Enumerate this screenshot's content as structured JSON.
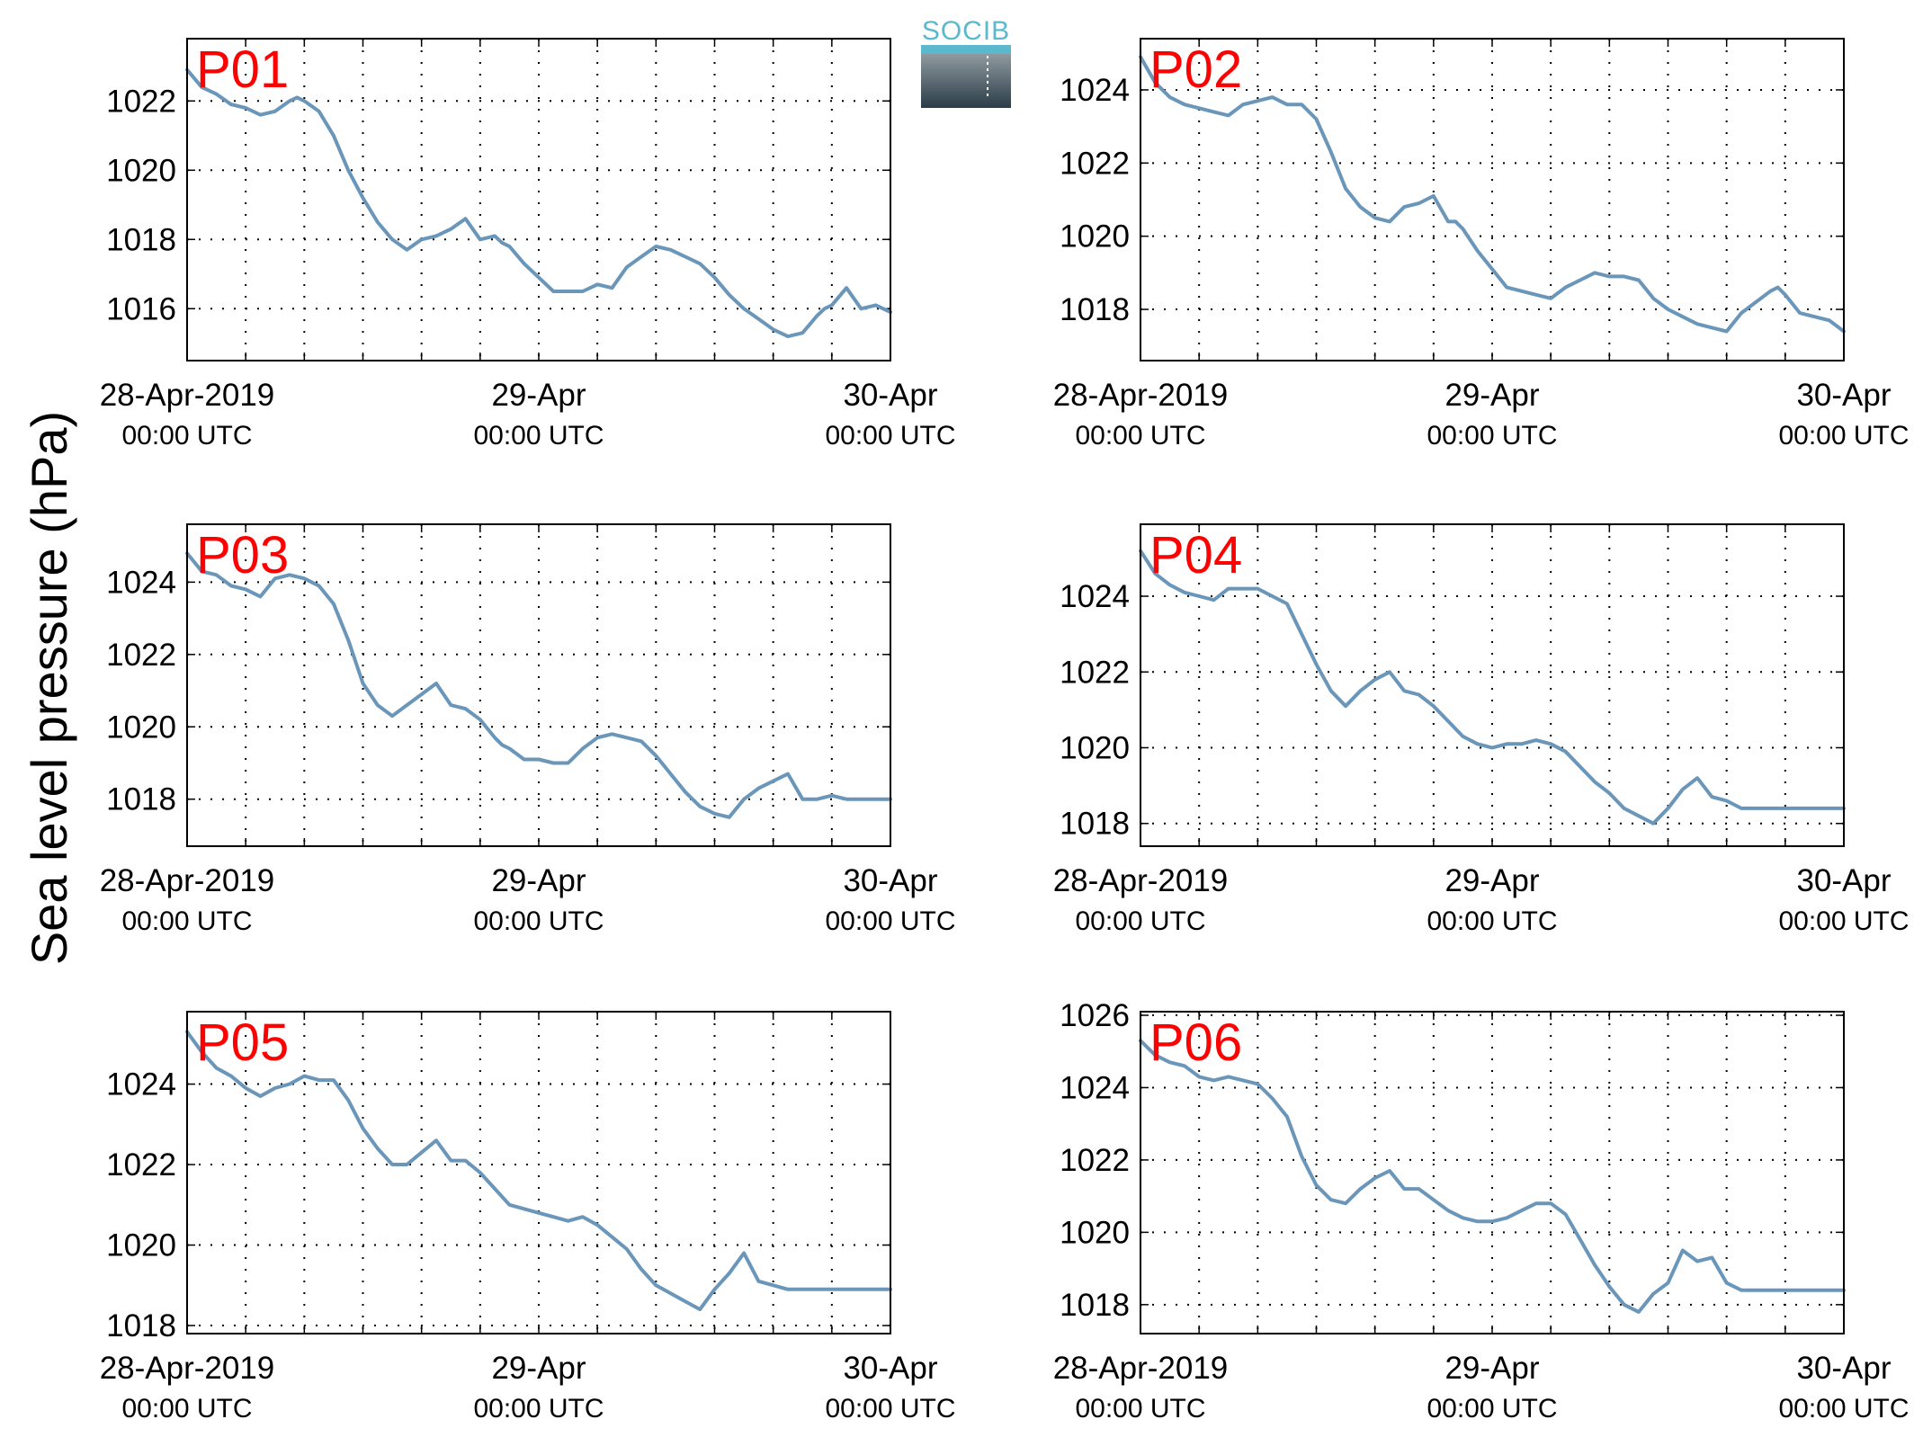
{
  "figure": {
    "ylabel": "Sea level pressure (hPa)",
    "logo_text": "SOCIB",
    "colors": {
      "line": "#6a96ba",
      "title": "#ff0000",
      "axis": "#000000",
      "grid": "#000000"
    }
  },
  "chart_data": [
    {
      "type": "line",
      "title": "P01",
      "xlim": [
        0,
        48
      ],
      "ylim": [
        1014.5,
        1023.8
      ],
      "yticks": [
        1016,
        1018,
        1020,
        1022
      ],
      "xticks": [
        0,
        4,
        8,
        12,
        16,
        20,
        24,
        28,
        32,
        36,
        40,
        44,
        48
      ],
      "xlabels": [
        {
          "x": 0,
          "line1": "28-Apr-2019",
          "line2": "00:00 UTC"
        },
        {
          "x": 24,
          "line1": "29-Apr",
          "line2": "00:00 UTC"
        },
        {
          "x": 48,
          "line1": "30-Apr",
          "line2": "00:00 UTC"
        }
      ],
      "series": [
        {
          "x": [
            0,
            1,
            2,
            3,
            4,
            5,
            6,
            7,
            7.5,
            8,
            9,
            10,
            11,
            12,
            13,
            14,
            15,
            16,
            17,
            18,
            19,
            20,
            21,
            21.5,
            22,
            23,
            24,
            25,
            26,
            27,
            28,
            29,
            30,
            31,
            32,
            33,
            34,
            35,
            36,
            37,
            38,
            39,
            40,
            41,
            42,
            43,
            43.5,
            44,
            45,
            46,
            47,
            48
          ],
          "y": [
            1022.9,
            1022.4,
            1022.2,
            1021.9,
            1021.8,
            1021.6,
            1021.7,
            1022.0,
            1022.1,
            1022.0,
            1021.7,
            1021.0,
            1020.0,
            1019.2,
            1018.5,
            1018.0,
            1017.7,
            1018.0,
            1018.1,
            1018.3,
            1018.6,
            1018.0,
            1018.1,
            1017.9,
            1017.8,
            1017.3,
            1016.9,
            1016.5,
            1016.5,
            1016.5,
            1016.7,
            1016.6,
            1017.2,
            1017.5,
            1017.8,
            1017.7,
            1017.5,
            1017.3,
            1016.9,
            1016.4,
            1016.0,
            1015.7,
            1015.4,
            1015.2,
            1015.3,
            1015.8,
            1016.0,
            1016.1,
            1016.6,
            1016.0,
            1016.1,
            1015.9
          ]
        }
      ]
    },
    {
      "type": "line",
      "title": "P02",
      "xlim": [
        0,
        48
      ],
      "ylim": [
        1016.6,
        1025.4
      ],
      "yticks": [
        1018,
        1020,
        1022,
        1024
      ],
      "xticks": [
        0,
        4,
        8,
        12,
        16,
        20,
        24,
        28,
        32,
        36,
        40,
        44,
        48
      ],
      "xlabels": [
        {
          "x": 0,
          "line1": "28-Apr-2019",
          "line2": "00:00 UTC"
        },
        {
          "x": 24,
          "line1": "29-Apr",
          "line2": "00:00 UTC"
        },
        {
          "x": 48,
          "line1": "30-Apr",
          "line2": "00:00 UTC"
        }
      ],
      "series": [
        {
          "x": [
            0,
            1,
            2,
            3,
            4,
            5,
            6,
            7,
            8,
            9,
            10,
            11,
            12,
            13,
            14,
            15,
            16,
            17,
            18,
            19,
            20,
            21,
            21.5,
            22,
            23,
            24,
            25,
            26,
            27,
            28,
            29,
            30,
            31,
            32,
            33,
            34,
            35,
            36,
            37,
            38,
            39,
            40,
            41,
            42,
            43,
            43.5,
            44,
            45,
            46,
            47,
            48
          ],
          "y": [
            1024.9,
            1024.2,
            1023.8,
            1023.6,
            1023.5,
            1023.4,
            1023.3,
            1023.6,
            1023.7,
            1023.8,
            1023.6,
            1023.6,
            1023.2,
            1022.3,
            1021.3,
            1020.8,
            1020.5,
            1020.4,
            1020.8,
            1020.9,
            1021.1,
            1020.4,
            1020.4,
            1020.2,
            1019.6,
            1019.1,
            1018.6,
            1018.5,
            1018.4,
            1018.3,
            1018.6,
            1018.8,
            1019.0,
            1018.9,
            1018.9,
            1018.8,
            1018.3,
            1018.0,
            1017.8,
            1017.6,
            1017.5,
            1017.4,
            1017.9,
            1018.2,
            1018.5,
            1018.6,
            1018.4,
            1017.9,
            1017.8,
            1017.7,
            1017.4
          ]
        }
      ]
    },
    {
      "type": "line",
      "title": "P03",
      "xlim": [
        0,
        48
      ],
      "ylim": [
        1016.7,
        1025.6
      ],
      "yticks": [
        1018,
        1020,
        1022,
        1024
      ],
      "xticks": [
        0,
        4,
        8,
        12,
        16,
        20,
        24,
        28,
        32,
        36,
        40,
        44,
        48
      ],
      "xlabels": [
        {
          "x": 0,
          "line1": "28-Apr-2019",
          "line2": "00:00 UTC"
        },
        {
          "x": 24,
          "line1": "29-Apr",
          "line2": "00:00 UTC"
        },
        {
          "x": 48,
          "line1": "30-Apr",
          "line2": "00:00 UTC"
        }
      ],
      "series": [
        {
          "x": [
            0,
            1,
            2,
            3,
            4,
            5,
            6,
            7,
            8,
            9,
            10,
            11,
            12,
            13,
            14,
            15,
            16,
            17,
            18,
            19,
            20,
            21,
            21.5,
            22,
            23,
            24,
            25,
            26,
            27,
            28,
            29,
            30,
            31,
            32,
            33,
            34,
            35,
            36,
            37,
            38,
            39,
            40,
            41,
            42,
            43,
            44,
            45,
            46,
            47,
            48
          ],
          "y": [
            1024.8,
            1024.3,
            1024.2,
            1023.9,
            1023.8,
            1023.6,
            1024.1,
            1024.2,
            1024.1,
            1023.9,
            1023.4,
            1022.4,
            1021.2,
            1020.6,
            1020.3,
            1020.6,
            1020.9,
            1021.2,
            1020.6,
            1020.5,
            1020.2,
            1019.7,
            1019.5,
            1019.4,
            1019.1,
            1019.1,
            1019.0,
            1019.0,
            1019.4,
            1019.7,
            1019.8,
            1019.7,
            1019.6,
            1019.2,
            1018.7,
            1018.2,
            1017.8,
            1017.6,
            1017.5,
            1018.0,
            1018.3,
            1018.5,
            1018.7,
            1018.0,
            1018.0,
            1018.1,
            1018.0,
            1018.0,
            1018.0,
            1018.0
          ]
        }
      ]
    },
    {
      "type": "line",
      "title": "P04",
      "xlim": [
        0,
        48
      ],
      "ylim": [
        1017.4,
        1025.9
      ],
      "yticks": [
        1018,
        1020,
        1022,
        1024
      ],
      "xticks": [
        0,
        4,
        8,
        12,
        16,
        20,
        24,
        28,
        32,
        36,
        40,
        44,
        48
      ],
      "xlabels": [
        {
          "x": 0,
          "line1": "28-Apr-2019",
          "line2": "00:00 UTC"
        },
        {
          "x": 24,
          "line1": "29-Apr",
          "line2": "00:00 UTC"
        },
        {
          "x": 48,
          "line1": "30-Apr",
          "line2": "00:00 UTC"
        }
      ],
      "series": [
        {
          "x": [
            0,
            1,
            2,
            3,
            4,
            5,
            6,
            7,
            8,
            9,
            10,
            11,
            12,
            13,
            14,
            15,
            16,
            17,
            18,
            19,
            20,
            21,
            22,
            23,
            24,
            25,
            26,
            27,
            28,
            29,
            30,
            31,
            32,
            33,
            34,
            35,
            36,
            37,
            38,
            39,
            40,
            41,
            42,
            43,
            44,
            45,
            46,
            47,
            48
          ],
          "y": [
            1025.2,
            1024.6,
            1024.3,
            1024.1,
            1024.0,
            1023.9,
            1024.2,
            1024.2,
            1024.2,
            1024.0,
            1023.8,
            1023.0,
            1022.2,
            1021.5,
            1021.1,
            1021.5,
            1021.8,
            1022.0,
            1021.5,
            1021.4,
            1021.1,
            1020.7,
            1020.3,
            1020.1,
            1020.0,
            1020.1,
            1020.1,
            1020.2,
            1020.1,
            1019.9,
            1019.5,
            1019.1,
            1018.8,
            1018.4,
            1018.2,
            1018.0,
            1018.4,
            1018.9,
            1019.2,
            1018.7,
            1018.6,
            1018.4,
            1018.4,
            1018.4,
            1018.4,
            1018.4,
            1018.4,
            1018.4,
            1018.4
          ]
        }
      ]
    },
    {
      "type": "line",
      "title": "P05",
      "xlim": [
        0,
        48
      ],
      "ylim": [
        1017.8,
        1025.8
      ],
      "yticks": [
        1018,
        1020,
        1022,
        1024
      ],
      "xticks": [
        0,
        4,
        8,
        12,
        16,
        20,
        24,
        28,
        32,
        36,
        40,
        44,
        48
      ],
      "xlabels": [
        {
          "x": 0,
          "line1": "28-Apr-2019",
          "line2": "00:00 UTC"
        },
        {
          "x": 24,
          "line1": "29-Apr",
          "line2": "00:00 UTC"
        },
        {
          "x": 48,
          "line1": "30-Apr",
          "line2": "00:00 UTC"
        }
      ],
      "series": [
        {
          "x": [
            0,
            1,
            2,
            3,
            4,
            5,
            6,
            7,
            8,
            9,
            10,
            11,
            12,
            13,
            14,
            15,
            16,
            17,
            18,
            19,
            20,
            21,
            22,
            23,
            24,
            25,
            26,
            27,
            28,
            29,
            30,
            31,
            32,
            33,
            34,
            35,
            36,
            37,
            38,
            39,
            40,
            41,
            42,
            43,
            44,
            45,
            46,
            47,
            48
          ],
          "y": [
            1025.3,
            1024.8,
            1024.4,
            1024.2,
            1023.9,
            1023.7,
            1023.9,
            1024.0,
            1024.2,
            1024.1,
            1024.1,
            1023.6,
            1022.9,
            1022.4,
            1022.0,
            1022.0,
            1022.3,
            1022.6,
            1022.1,
            1022.1,
            1021.8,
            1021.4,
            1021.0,
            1020.9,
            1020.8,
            1020.7,
            1020.6,
            1020.7,
            1020.5,
            1020.2,
            1019.9,
            1019.4,
            1019.0,
            1018.8,
            1018.6,
            1018.4,
            1018.9,
            1019.3,
            1019.8,
            1019.1,
            1019.0,
            1018.9,
            1018.9,
            1018.9,
            1018.9,
            1018.9,
            1018.9,
            1018.9,
            1018.9
          ]
        }
      ]
    },
    {
      "type": "line",
      "title": "P06",
      "xlim": [
        0,
        48
      ],
      "ylim": [
        1017.2,
        1026.1
      ],
      "yticks": [
        1018,
        1020,
        1022,
        1024,
        1026
      ],
      "xticks": [
        0,
        4,
        8,
        12,
        16,
        20,
        24,
        28,
        32,
        36,
        40,
        44,
        48
      ],
      "xlabels": [
        {
          "x": 0,
          "line1": "28-Apr-2019",
          "line2": "00:00 UTC"
        },
        {
          "x": 24,
          "line1": "29-Apr",
          "line2": "00:00 UTC"
        },
        {
          "x": 48,
          "line1": "30-Apr",
          "line2": "00:00 UTC"
        }
      ],
      "series": [
        {
          "x": [
            0,
            1,
            2,
            3,
            4,
            5,
            6,
            7,
            8,
            9,
            10,
            11,
            12,
            13,
            14,
            15,
            16,
            17,
            18,
            19,
            20,
            21,
            22,
            23,
            24,
            25,
            26,
            27,
            28,
            29,
            30,
            31,
            32,
            33,
            34,
            35,
            36,
            37,
            38,
            39,
            40,
            41,
            42,
            43,
            44,
            45,
            46,
            47,
            48
          ],
          "y": [
            1025.3,
            1024.9,
            1024.7,
            1024.6,
            1024.3,
            1024.2,
            1024.3,
            1024.2,
            1024.1,
            1023.7,
            1023.2,
            1022.1,
            1021.3,
            1020.9,
            1020.8,
            1021.2,
            1021.5,
            1021.7,
            1021.2,
            1021.2,
            1020.9,
            1020.6,
            1020.4,
            1020.3,
            1020.3,
            1020.4,
            1020.6,
            1020.8,
            1020.8,
            1020.5,
            1019.8,
            1019.1,
            1018.5,
            1018.0,
            1017.8,
            1018.3,
            1018.6,
            1019.5,
            1019.2,
            1019.3,
            1018.6,
            1018.4,
            1018.4,
            1018.4,
            1018.4,
            1018.4,
            1018.4,
            1018.4,
            1018.4
          ]
        }
      ]
    }
  ]
}
